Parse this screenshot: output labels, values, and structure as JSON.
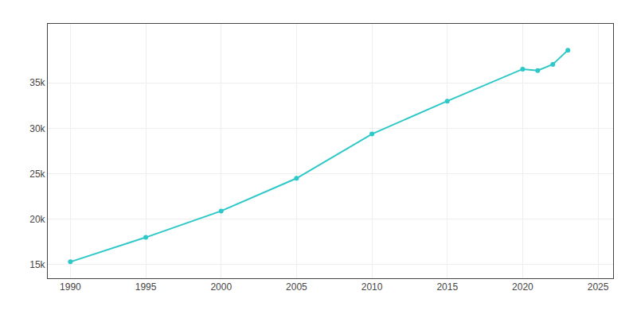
{
  "chart_data": {
    "type": "line",
    "x": [
      1990,
      1995,
      2000,
      2005,
      2010,
      2015,
      2020,
      2021,
      2022,
      2023
    ],
    "values": [
      15306,
      18000,
      20900,
      24500,
      29376,
      33000,
      36521,
      36370,
      37040,
      38600
    ],
    "color": "#2ec8c8",
    "marker": "circle",
    "xlim": [
      1988.5,
      2026
    ],
    "ylim": [
      13500,
      41500
    ],
    "xticks": [
      1990,
      1995,
      2000,
      2005,
      2010,
      2015,
      2020,
      2025
    ],
    "yticks": [
      {
        "value": 15000,
        "label": "15k"
      },
      {
        "value": 20000,
        "label": "20k"
      },
      {
        "value": 25000,
        "label": "25k"
      },
      {
        "value": 30000,
        "label": "30k"
      },
      {
        "value": 35000,
        "label": "35k"
      }
    ],
    "grid": true
  }
}
